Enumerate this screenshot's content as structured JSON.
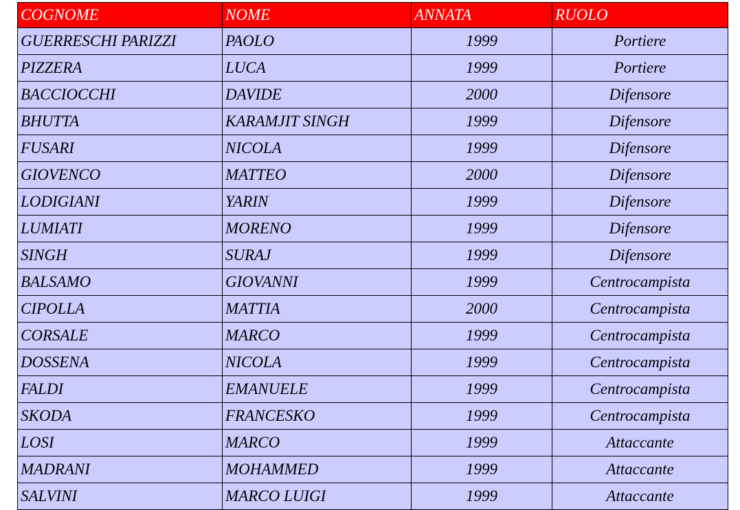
{
  "table": {
    "header": [
      "COGNOME",
      "NOME",
      "ANNATA",
      "RUOLO"
    ],
    "rows": [
      [
        "GUERRESCHI PARIZZI",
        "PAOLO",
        "1999",
        "Portiere"
      ],
      [
        "PIZZERA",
        "LUCA",
        "1999",
        "Portiere"
      ],
      [
        "BACCIOCCHI",
        "DAVIDE",
        "2000",
        "Difensore"
      ],
      [
        "BHUTTA",
        "KARAMJIT SINGH",
        "1999",
        "Difensore"
      ],
      [
        "FUSARI",
        "NICOLA",
        "1999",
        "Difensore"
      ],
      [
        "GIOVENCO",
        "MATTEO",
        "2000",
        "Difensore"
      ],
      [
        "LODIGIANI",
        "YARIN",
        "1999",
        "Difensore"
      ],
      [
        "LUMIATI",
        "MORENO",
        "1999",
        "Difensore"
      ],
      [
        "SINGH",
        "SURAJ",
        "1999",
        "Difensore"
      ],
      [
        "BALSAMO",
        "GIOVANNI",
        "1999",
        "Centrocampista"
      ],
      [
        "CIPOLLA",
        "MATTIA",
        "2000",
        "Centrocampista"
      ],
      [
        "CORSALE",
        "MARCO",
        "1999",
        "Centrocampista"
      ],
      [
        "DOSSENA",
        "NICOLA",
        "1999",
        "Centrocampista"
      ],
      [
        "FALDI",
        "EMANUELE",
        "1999",
        "Centrocampista"
      ],
      [
        "SKODA",
        "FRANCESKO",
        "1999",
        "Centrocampista"
      ],
      [
        "LOSI",
        "MARCO",
        "1999",
        "Attaccante"
      ],
      [
        "MADRANI",
        "MOHAMMED",
        "1999",
        "Attaccante"
      ],
      [
        "SALVINI",
        "MARCO LUIGI",
        "1999",
        "Attaccante"
      ]
    ]
  }
}
